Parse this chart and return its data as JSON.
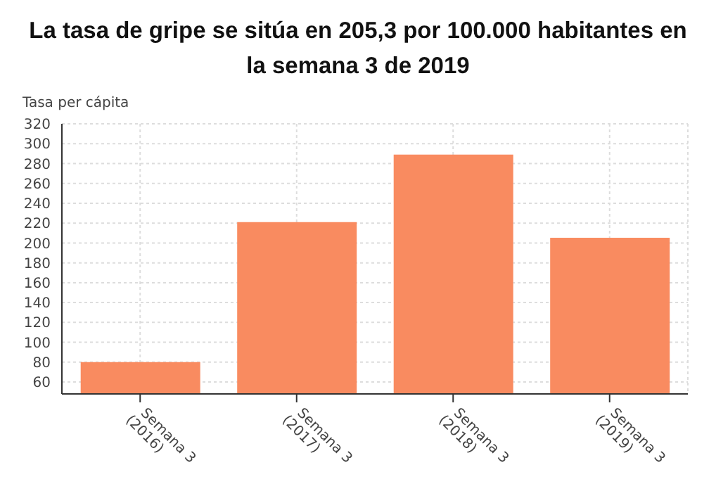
{
  "chart_data": {
    "type": "bar",
    "title": "La tasa de gripe se sitúa en 205,3 por 100.000 habitantes en la semana 3 de 2019",
    "ylabel": "Tasa per cápita",
    "categories": [
      "Semana 3 (2016)",
      "Semana 3 (2017)",
      "Semana 3 (2018)",
      "Semana 3 (2019)"
    ],
    "values": [
      80,
      221,
      289,
      205.3
    ],
    "color": "#f98b60",
    "ylim": [
      48,
      320
    ],
    "yticks": [
      60,
      80,
      100,
      120,
      140,
      160,
      180,
      200,
      220,
      240,
      260,
      280,
      300,
      320
    ],
    "grid": true
  }
}
